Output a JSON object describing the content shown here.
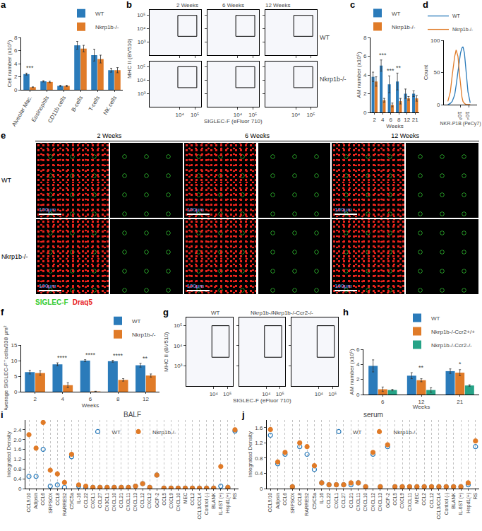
{
  "chart_data": [
    {
      "panel": "a",
      "type": "bar",
      "categories": [
        "Alveolar Mac.",
        "Eosinophils",
        "CD11b cells",
        "B-cells",
        "T-cells",
        "NK cells"
      ],
      "series": [
        {
          "name": "WT",
          "color": "#2b7bba",
          "values": [
            2.4,
            1.3,
            0.6,
            6.8,
            5.3,
            3.0
          ],
          "errors": [
            0.15,
            0.1,
            0.1,
            0.6,
            0.9,
            0.3
          ]
        },
        {
          "name": "Nkrp1b-/-",
          "color": "#e07b28",
          "values": [
            0.4,
            1.2,
            0.6,
            6.3,
            4.7,
            3.0
          ],
          "errors": [
            0.05,
            0.1,
            0.1,
            0.5,
            0.6,
            0.4
          ]
        }
      ],
      "ylabel": "Cell number (x10⁵)",
      "ylim": [
        0,
        8
      ],
      "yticks": [
        0,
        2,
        4,
        6,
        8
      ],
      "legend": "top",
      "annotations": [
        {
          "category": "Alveolar Mac.",
          "text": "***"
        }
      ]
    },
    {
      "panel": "b",
      "type": "flow_cytometry",
      "columns": [
        "2 Weeks",
        "6 Weeks",
        "12 Weeks"
      ],
      "rows": [
        "WT",
        "Nkrp1b-/-"
      ],
      "xlabel": "SIGLEC-F (eFluor 710)",
      "ylabel": "MHC II (BV510)",
      "log": true,
      "xlim": [
        100,
        250000
      ],
      "xticks": [
        {
          "value": 10000,
          "label": "10⁴"
        },
        {
          "value": 100000,
          "label": "10⁵"
        }
      ],
      "ylim": [
        100,
        250000
      ],
      "yticks": [
        {
          "value": 1000,
          "label": "10³"
        },
        {
          "value": 10000,
          "label": "10⁴"
        },
        {
          "value": 100000,
          "label": "10⁵"
        }
      ]
    },
    {
      "panel": "c",
      "type": "bar",
      "categories": [
        "2",
        "4",
        "6",
        "8",
        "12",
        "21"
      ],
      "series": [
        {
          "name": "WT",
          "color": "#2b7bba",
          "values": [
            3.8,
            5.0,
            3.0,
            3.3,
            2.0,
            2.0
          ],
          "errors": [
            0.5,
            0.6,
            0.9,
            0.9,
            0.5,
            0.3
          ]
        },
        {
          "name": "Nkrp1b-/-",
          "color": "#e07b28",
          "values": [
            3.3,
            1.3,
            0.8,
            1.2,
            1.5,
            1.5
          ],
          "errors": [
            0.5,
            0.2,
            0.2,
            0.3,
            0.2,
            0.3
          ]
        }
      ],
      "xlabel": "Weeks",
      "ylabel": "AM number (x10⁵)",
      "ylim": [
        0,
        8
      ],
      "yticks": [
        0,
        2,
        4,
        6,
        8
      ],
      "legend": "top",
      "annotations": [
        {
          "category": "4",
          "text": "***"
        },
        {
          "category": "6",
          "text": "***"
        },
        {
          "category": "8",
          "text": "**"
        }
      ]
    },
    {
      "panel": "d",
      "type": "line",
      "x": [
        30,
        60,
        100,
        200,
        300,
        500,
        800,
        1000,
        1500,
        2000,
        3000,
        5000,
        8000,
        15000
      ],
      "series": [
        {
          "name": "WT",
          "color": "#2b7bba",
          "values": [
            0,
            2,
            5,
            15,
            30,
            50,
            70,
            80,
            88,
            90,
            80,
            50,
            20,
            3
          ]
        },
        {
          "name": "Nkrp1b-/-",
          "color": "#e07b28",
          "values": [
            5,
            20,
            45,
            75,
            85,
            75,
            45,
            30,
            12,
            5,
            2,
            0,
            0,
            0
          ]
        }
      ],
      "xlabel": "NKR-P1B (PeCy7)",
      "ylabel": "Count",
      "log": "x",
      "xlim": [
        10,
        100000
      ],
      "xticks": [
        {
          "value": 1000,
          "label": "10³"
        },
        {
          "value": 10000,
          "label": "10⁴"
        }
      ],
      "ylim": [
        0,
        100
      ],
      "yticks": [
        0,
        50,
        100
      ],
      "legend": "top"
    },
    {
      "panel": "e",
      "type": "micrograph",
      "columns": [
        "2 Weeks",
        "6 Weeks",
        "12 Weeks"
      ],
      "rows": [
        "WT",
        "Nkrp1b-/-"
      ],
      "scale_bar": "100μm",
      "channels": [
        {
          "name": "SIGLEC-F",
          "color": "#33cc33"
        },
        {
          "name": "Draq5",
          "color": "#e8231c"
        }
      ]
    },
    {
      "panel": "f",
      "type": "bar",
      "categories": [
        "2",
        "4",
        "6",
        "8",
        "12"
      ],
      "series": [
        {
          "name": "WT",
          "color": "#2b7bba",
          "values": [
            6.3,
            8.8,
            10,
            9.8,
            8.5
          ],
          "errors": [
            0.6,
            0.5,
            0.3,
            0.3,
            0.6
          ]
        },
        {
          "name": "Nkrp1b-/-",
          "color": "#e07b28",
          "values": [
            6,
            2.1,
            0.1,
            3.8,
            5.2
          ],
          "errors": [
            0.7,
            0.8,
            0.05,
            0.4,
            0.5
          ]
        }
      ],
      "xlabel": "Weeks",
      "ylabel": "Average SIGLEC-F⁺cells/338 μm²",
      "ylim": [
        0,
        15
      ],
      "yticks": [
        0,
        5,
        10,
        15
      ],
      "legend": "top",
      "annotations": [
        {
          "category": "4",
          "text": "****"
        },
        {
          "category": "6",
          "text": "****"
        },
        {
          "category": "8",
          "text": "****"
        },
        {
          "category": "12",
          "text": "**"
        }
      ]
    },
    {
      "panel": "g",
      "type": "flow_cytometry",
      "columns": [
        "WT",
        "Nkrp1b-/-",
        "Nkrp1b-/-Ccr2-/-"
      ],
      "xlabel": "SIGLEC-F (eFluor 710)",
      "ylabel": "MHC II (BV510)",
      "log": true,
      "xlim": [
        100,
        250000
      ],
      "xticks": [
        {
          "value": 10000,
          "label": "10⁴"
        },
        {
          "value": 100000,
          "label": "10⁵"
        }
      ],
      "ylim": [
        100,
        250000
      ],
      "yticks": [
        {
          "value": 1000,
          "label": "10³"
        },
        {
          "value": 10000,
          "label": "10⁴"
        },
        {
          "value": 100000,
          "label": "10⁵"
        }
      ]
    },
    {
      "panel": "h",
      "type": "bar",
      "categories": [
        "6",
        "12",
        "21"
      ],
      "series": [
        {
          "name": "WT",
          "color": "#2b7bba",
          "values": [
            3.8,
            2.5,
            3.1
          ],
          "errors": [
            0.8,
            0.4,
            0.3
          ]
        },
        {
          "name": "Nkrp1b-/-Ccr2+/+",
          "color": "#e07b28",
          "values": [
            0.7,
            1.9,
            2.9
          ],
          "errors": [
            0.3,
            0.2,
            0.4
          ]
        },
        {
          "name": "Nkrp1b-/-Ccr2-/-",
          "color": "#26a387",
          "values": [
            0.6,
            0.6,
            1.2
          ],
          "errors": [
            0.1,
            0.3,
            0.1
          ]
        }
      ],
      "xlabel": "Weeks",
      "ylabel": "AM number (x10⁵)",
      "ylim": [
        0,
        6
      ],
      "yticks": [
        0,
        2,
        4,
        6
      ],
      "legend": "top",
      "annotations": [
        {
          "category": "12",
          "text": "**"
        },
        {
          "category": "21",
          "text": "*"
        }
      ]
    },
    {
      "panel": "i",
      "type": "dot",
      "title": "BALF",
      "categories": [
        "CCL9/10",
        "Adipsin",
        "CCL6",
        "SRPSOX",
        "CCL8",
        "RARRES2",
        "C5/C5a",
        "IL-16",
        "CCL22",
        "CXCL1",
        "CCL27",
        "CX3CL1",
        "CXCL10",
        "CCL21",
        "CXCL11",
        "CXCL13",
        "CCL12",
        "CXCL2",
        "GCP-2",
        "CCL5",
        "CXCL9",
        "CXCL10",
        "MEC",
        "CCL2",
        "CCL3/CCL4",
        "Control (-)",
        "BLANK",
        "IL-6ST (+)",
        "Hspd1(+)",
        "RS"
      ],
      "series": [
        {
          "name": "WT",
          "color": "#2b7bba",
          "marker": "circle-open",
          "values": [
            0.5,
            0.5,
            1.6,
            0.1,
            0.15,
            0.05,
            1.3,
            0.1,
            0.05,
            0.05,
            0.05,
            0.05,
            0.05,
            0.05,
            0.05,
            0.1,
            0.2,
            0.05,
            0.55,
            0.02,
            0.02,
            0.02,
            0.02,
            0.02,
            0.02,
            0.02,
            0.02,
            0.1,
            0.05,
            2.35
          ]
        },
        {
          "name": "Nkrp1b-/-",
          "color": "#e07b28",
          "marker": "circle",
          "values": [
            2.2,
            1.65,
            2.7,
            0.75,
            0.6,
            0.25,
            1.4,
            0.15,
            0.1,
            0.05,
            0.05,
            0.05,
            0.05,
            0.05,
            0.05,
            0.1,
            0.2,
            0.05,
            0.55,
            0.02,
            0.02,
            0.02,
            0.02,
            0.02,
            0.02,
            0.02,
            0.02,
            0.9,
            0.05,
            2.4
          ]
        }
      ],
      "ylabel": "Integrated Density",
      "ylim": [
        0,
        2.8
      ],
      "yticks": [
        0,
        0.4,
        0.8,
        1.2,
        1.6,
        {
          "value": 2,
          "label": "2.0"
        },
        2.4
      ],
      "grid": true,
      "legend": "top center"
    },
    {
      "panel": "j",
      "type": "dot",
      "title": "serum",
      "categories": [
        "CCL9/10",
        "Adipsin",
        "CCL6",
        "SRPSOX",
        "CCL8",
        "RARRES2",
        "C5/C5a",
        "IL-16",
        "CCL22",
        "CXCL1",
        "CCL27",
        "CCL21",
        "CXCL11",
        "CXCL10",
        "CXCL12",
        "CXCL13",
        "GCP-2",
        "CCL5",
        "CXCL9",
        "CXCL11",
        "MEC",
        "CCL2",
        "CCL12",
        "CCL3/CCL4",
        "Control (-)",
        "BLANK",
        "IL-6ST (+)",
        "Hspd1(+)",
        "RS"
      ],
      "series": [
        {
          "name": "WT",
          "color": "#2b7bba",
          "marker": "circle-open",
          "values": [
            1.4,
            0.65,
            0.9,
            0.05,
            1.1,
            0.9,
            0.5,
            0.15,
            0.1,
            0.1,
            0.1,
            0.1,
            0.15,
            0.05,
            0.9,
            0.05,
            1.1,
            0.05,
            0.05,
            0.05,
            0.05,
            0.05,
            0.05,
            0.05,
            0.05,
            0.05,
            0.05,
            0.1,
            1.1
          ]
        },
        {
          "name": "Nkrp1b-/-",
          "color": "#e07b28",
          "marker": "circle",
          "values": [
            1.55,
            0.7,
            0.95,
            0.05,
            1.2,
            1.1,
            0.6,
            0.15,
            0.1,
            0.1,
            0.1,
            0.15,
            0.15,
            0.05,
            0.95,
            0.05,
            1.15,
            0.05,
            0.05,
            0.05,
            0.05,
            0.05,
            0.05,
            0.05,
            0.05,
            0.05,
            0.05,
            0.15,
            1.25
          ]
        }
      ],
      "ylabel": "Integrated Density",
      "ylim": [
        0,
        1.8
      ],
      "yticks": [
        0,
        0.4,
        0.8,
        1.2,
        1.6
      ],
      "grid": true,
      "legend": "top center"
    }
  ]
}
